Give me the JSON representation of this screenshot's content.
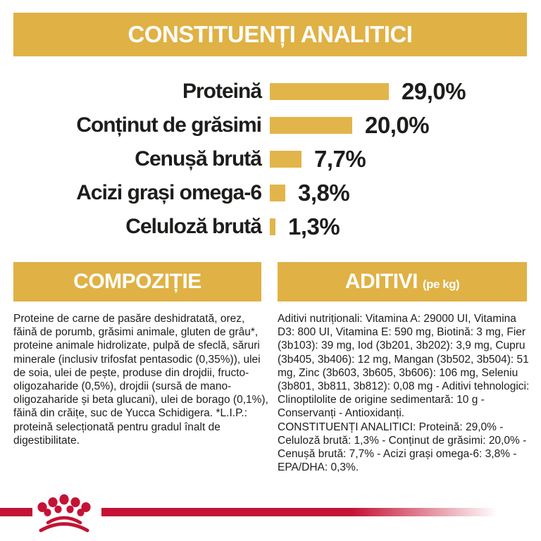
{
  "header": {
    "title": "CONSTITUENȚI ANALITICI"
  },
  "chart_data": {
    "type": "bar",
    "orientation": "horizontal",
    "title": "CONSTITUENȚI ANALITICI",
    "categories": [
      "Proteină",
      "Conținut de grăsimi",
      "Cenușă brută",
      "Acizi grași omega-6",
      "Celuloză brută"
    ],
    "values": [
      29.0,
      20.0,
      7.7,
      3.8,
      1.3
    ],
    "value_labels": [
      "29,0%",
      "20,0%",
      "7,7%",
      "3,8%",
      "1,3%"
    ],
    "unit": "%",
    "xlim": [
      0,
      30
    ],
    "grid": false,
    "bar_color": "#e2b54b"
  },
  "composition": {
    "title": "COMPOZIȚIE",
    "body": "Proteine de carne de pasăre deshidratată, orez, făină de porumb, grăsimi animale, gluten de grâu*, proteine animale hidrolizate, pulpă de sfeclă, săruri minerale (inclusiv trifosfat pentasodic (0,35%)), ulei de soia, ulei de pește, produse din drojdii, fructo-oligozaharide (0,5%), drojdii (sursă de mano-oligozaharide și beta glucani), ulei de borago (0,1%), făină din crăițe, suc de Yucca Schidigera. *L.I.P.: proteină selecționată pentru gradul înalt de digestibilitate."
  },
  "additives": {
    "title": "ADITIVI",
    "unit": "(pe kg)",
    "body_1": "Aditivi nutriționali: Vitamina A: 29000 UI, Vitamina D3: 800 UI, Vitamina E: 590 mg, Biotină: 3 mg, Fier (3b103): 39 mg, Iod (3b201, 3b202): 3,9 mg, Cupru (3b405, 3b406): 12 mg, Mangan (3b502, 3b504): 51 mg, Zinc (3b603, 3b605, 3b606): 106 mg, Seleniu (3b801, 3b811, 3b812): 0,08 mg - Aditivi tehnologici: Clinoptilolite de origine sedimentară: 10 g - Conservanți - Antioxidanți.",
    "body_2": "CONSTITUENȚI ANALITICI: Proteină: 29,0% - Celuloză brută: 1,3% - Conținut de grăsimi: 20,0% - Cenușă brută: 7,7% - Acizi grași omega-6: 3,8% - EPA/DHA: 0,3%."
  },
  "footer": {
    "logo": "royal-canin-crown-icon"
  },
  "colors": {
    "gold": "#e0b144",
    "bar": "#e2b54b",
    "red": "#c41334",
    "ink": "#1d1d1b"
  }
}
